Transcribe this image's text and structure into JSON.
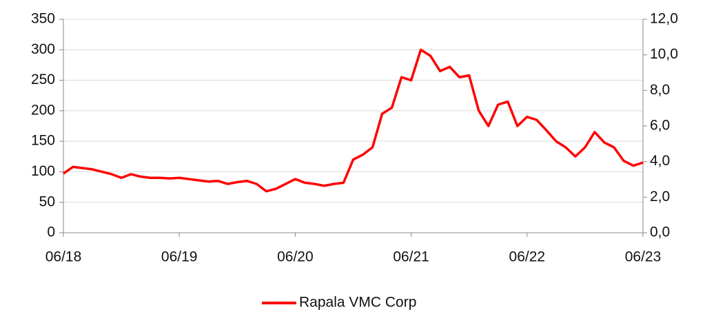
{
  "chart_data": {
    "type": "line",
    "categories": [
      "06/18",
      null,
      null,
      null,
      null,
      null,
      null,
      null,
      null,
      null,
      null,
      null,
      "06/19",
      null,
      null,
      null,
      null,
      null,
      null,
      null,
      null,
      null,
      null,
      null,
      "06/20",
      null,
      null,
      null,
      null,
      null,
      null,
      null,
      null,
      null,
      null,
      null,
      "06/21",
      null,
      null,
      null,
      null,
      null,
      null,
      null,
      null,
      null,
      null,
      null,
      "06/22",
      null,
      null,
      null,
      null,
      null,
      null,
      null,
      null,
      null,
      null,
      null,
      "06/23"
    ],
    "series": [
      {
        "name": "Rapala VMC Corp",
        "color": "#ff0000",
        "values": [
          97,
          108,
          106,
          104,
          100,
          96,
          90,
          96,
          92,
          90,
          90,
          89,
          90,
          88,
          86,
          84,
          85,
          80,
          83,
          85,
          80,
          68,
          72,
          80,
          88,
          82,
          80,
          77,
          80,
          82,
          120,
          128,
          140,
          195,
          205,
          255,
          250,
          300,
          290,
          265,
          272,
          255,
          258,
          200,
          175,
          210,
          215,
          175,
          190,
          185,
          168,
          150,
          140,
          125,
          140,
          165,
          148,
          140,
          118,
          110,
          115
        ]
      }
    ],
    "ylim": [
      0,
      350
    ],
    "yticks": [
      0,
      50,
      100,
      150,
      200,
      250,
      300,
      350
    ],
    "y2lim": [
      0,
      12
    ],
    "y2ticks": [
      {
        "value": 0,
        "label": "0,0"
      },
      {
        "value": 2,
        "label": "2,0"
      },
      {
        "value": 4,
        "label": "4,0"
      },
      {
        "value": 6,
        "label": "6,0"
      },
      {
        "value": 8,
        "label": "8,0"
      },
      {
        "value": 10,
        "label": "10,0"
      },
      {
        "value": 12,
        "label": "12,0"
      }
    ],
    "grid": true,
    "legend": "bottom"
  }
}
